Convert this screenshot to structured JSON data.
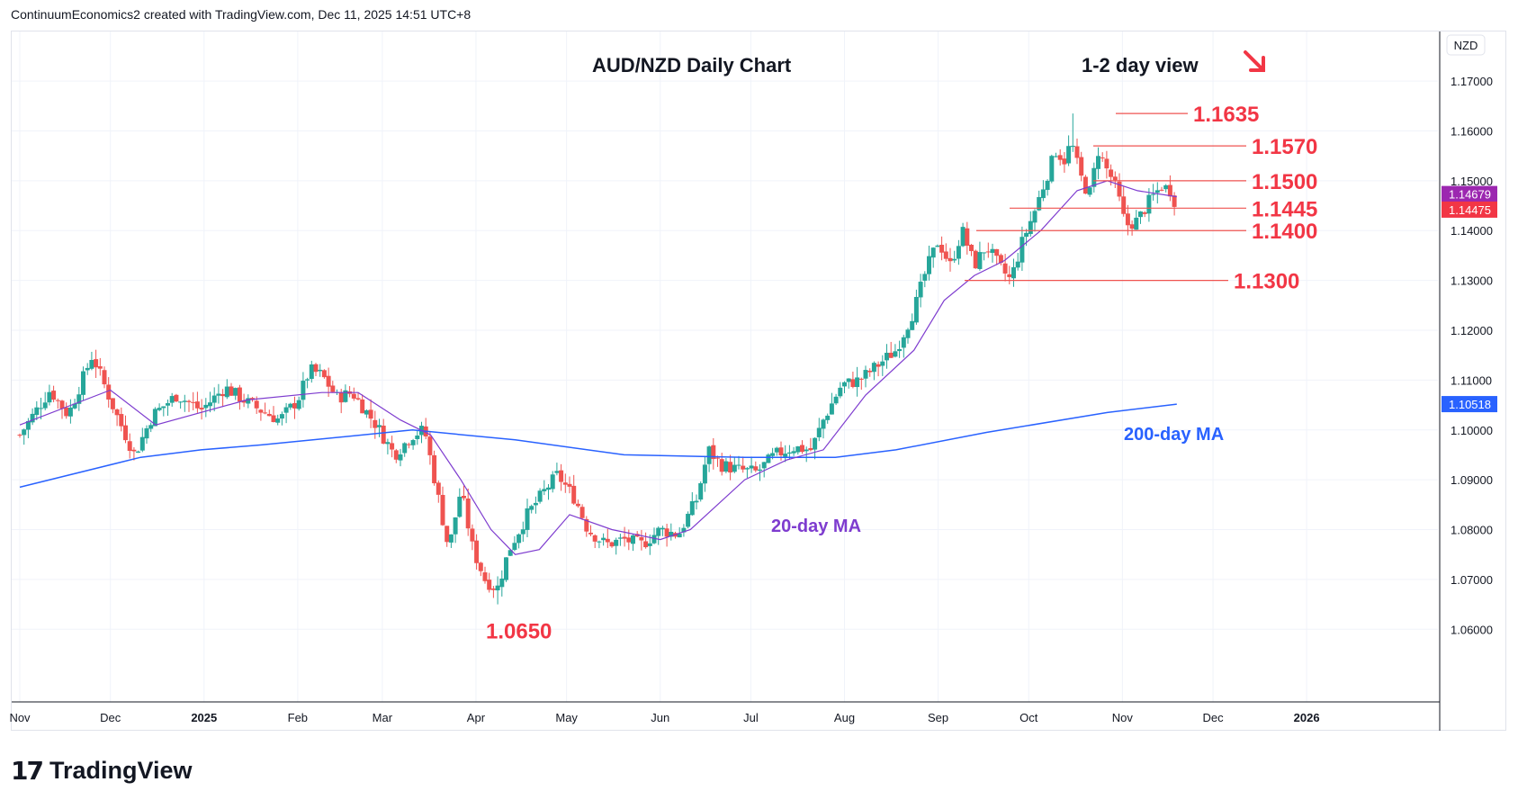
{
  "header": {
    "attribution": "ContinuumEconomics2 created with TradingView.com, Dec 11, 2025 14:51 UTC+8"
  },
  "footer": {
    "brand": "TradingView"
  },
  "colors": {
    "up": "#26a69a",
    "down": "#ef5350",
    "ma20": "#7e3ccf",
    "ma200": "#2962ff",
    "level": "#ef5350",
    "label_red": "#f23645"
  },
  "chart_data": {
    "type": "candlestick",
    "title": "AUD/NZD Daily Chart",
    "subtitle": "1-2 day view",
    "currency_label": "NZD",
    "y_ticks": [
      "1.17000",
      "1.16000",
      "1.15000",
      "1.14000",
      "1.13000",
      "1.12000",
      "1.11000",
      "1.10000",
      "1.09000",
      "1.08000",
      "1.07000",
      "1.06000"
    ],
    "ylim": [
      1.053,
      1.178
    ],
    "x_ticks": [
      "Nov",
      "Dec",
      "2025",
      "Feb",
      "Mar",
      "Apr",
      "May",
      "Jun",
      "Jul",
      "Aug",
      "Sep",
      "Oct",
      "Nov",
      "Dec",
      "2026"
    ],
    "last_price_labels": [
      {
        "value": 1.14679,
        "text": "1.14679",
        "color": "#9c27b0"
      },
      {
        "value": 1.14475,
        "text": "1.14475",
        "color": "#f23645"
      },
      {
        "value": 1.10518,
        "text": "1.10518",
        "color": "#2962ff"
      }
    ],
    "levels": [
      {
        "value": 1.1635,
        "label": "1.1635"
      },
      {
        "value": 1.157,
        "label": "1.1570"
      },
      {
        "value": 1.15,
        "label": "1.1500"
      },
      {
        "value": 1.1445,
        "label": "1.1445"
      },
      {
        "value": 1.14,
        "label": "1.1400"
      },
      {
        "value": 1.13,
        "label": "1.1300"
      }
    ],
    "low_label": {
      "value": 1.065,
      "label": "1.0650"
    },
    "ma_labels": {
      "ma20": "20-day MA",
      "ma200": "200-day MA"
    },
    "anchors": [
      {
        "d": 0,
        "p": 1.099
      },
      {
        "d": 10,
        "p": 1.108
      },
      {
        "d": 16,
        "p": 1.103
      },
      {
        "d": 24,
        "p": 1.115
      },
      {
        "d": 32,
        "p": 1.103
      },
      {
        "d": 38,
        "p": 1.095
      },
      {
        "d": 44,
        "p": 1.103
      },
      {
        "d": 52,
        "p": 1.107
      },
      {
        "d": 60,
        "p": 1.104
      },
      {
        "d": 68,
        "p": 1.1085
      },
      {
        "d": 78,
        "p": 1.1045
      },
      {
        "d": 86,
        "p": 1.102
      },
      {
        "d": 92,
        "p": 1.106
      },
      {
        "d": 96,
        "p": 1.112
      },
      {
        "d": 100,
        "p": 1.111
      },
      {
        "d": 105,
        "p": 1.1065
      },
      {
        "d": 110,
        "p": 1.1075
      },
      {
        "d": 118,
        "p": 1.101
      },
      {
        "d": 124,
        "p": 1.095
      },
      {
        "d": 130,
        "p": 1.099
      },
      {
        "d": 134,
        "p": 1.1
      },
      {
        "d": 138,
        "p": 1.088
      },
      {
        "d": 142,
        "p": 1.076
      },
      {
        "d": 146,
        "p": 1.088
      },
      {
        "d": 150,
        "p": 1.076
      },
      {
        "d": 154,
        "p": 1.07
      },
      {
        "d": 158,
        "p": 1.068
      },
      {
        "d": 162,
        "p": 1.076
      },
      {
        "d": 168,
        "p": 1.083
      },
      {
        "d": 174,
        "p": 1.088
      },
      {
        "d": 178,
        "p": 1.091
      },
      {
        "d": 184,
        "p": 1.086
      },
      {
        "d": 188,
        "p": 1.08
      },
      {
        "d": 194,
        "p": 1.077
      },
      {
        "d": 200,
        "p": 1.078
      },
      {
        "d": 206,
        "p": 1.077
      },
      {
        "d": 212,
        "p": 1.08
      },
      {
        "d": 218,
        "p": 1.079
      },
      {
        "d": 224,
        "p": 1.086
      },
      {
        "d": 228,
        "p": 1.096
      },
      {
        "d": 232,
        "p": 1.093
      },
      {
        "d": 238,
        "p": 1.092
      },
      {
        "d": 244,
        "p": 1.0915
      },
      {
        "d": 250,
        "p": 1.095
      },
      {
        "d": 256,
        "p": 1.0965
      },
      {
        "d": 262,
        "p": 1.096
      },
      {
        "d": 266,
        "p": 1.102
      },
      {
        "d": 272,
        "p": 1.109
      },
      {
        "d": 278,
        "p": 1.11
      },
      {
        "d": 284,
        "p": 1.113
      },
      {
        "d": 290,
        "p": 1.116
      },
      {
        "d": 296,
        "p": 1.124
      },
      {
        "d": 300,
        "p": 1.132
      },
      {
        "d": 304,
        "p": 1.138
      },
      {
        "d": 308,
        "p": 1.133
      },
      {
        "d": 312,
        "p": 1.14
      },
      {
        "d": 316,
        "p": 1.133
      },
      {
        "d": 320,
        "p": 1.137
      },
      {
        "d": 324,
        "p": 1.133
      },
      {
        "d": 328,
        "p": 1.13
      },
      {
        "d": 332,
        "p": 1.138
      },
      {
        "d": 336,
        "p": 1.144
      },
      {
        "d": 340,
        "p": 1.151
      },
      {
        "d": 343,
        "p": 1.156
      },
      {
        "d": 346,
        "p": 1.154
      },
      {
        "d": 348,
        "p": 1.158
      },
      {
        "d": 351,
        "p": 1.151
      },
      {
        "d": 354,
        "p": 1.147
      },
      {
        "d": 357,
        "p": 1.156
      },
      {
        "d": 360,
        "p": 1.152
      },
      {
        "d": 362,
        "p": 1.15
      },
      {
        "d": 364,
        "p": 1.146
      },
      {
        "d": 366,
        "p": 1.141
      },
      {
        "d": 370,
        "p": 1.142
      },
      {
        "d": 374,
        "p": 1.146
      },
      {
        "d": 378,
        "p": 1.149
      },
      {
        "d": 381,
        "p": 1.148
      },
      {
        "d": 383,
        "p": 1.14475
      }
    ],
    "ma20": [
      {
        "d": 0,
        "p": 1.101
      },
      {
        "d": 30,
        "p": 1.108
      },
      {
        "d": 45,
        "p": 1.101
      },
      {
        "d": 75,
        "p": 1.106
      },
      {
        "d": 100,
        "p": 1.1075
      },
      {
        "d": 112,
        "p": 1.1075
      },
      {
        "d": 126,
        "p": 1.102
      },
      {
        "d": 136,
        "p": 1.099
      },
      {
        "d": 146,
        "p": 1.09
      },
      {
        "d": 156,
        "p": 1.08
      },
      {
        "d": 164,
        "p": 1.075
      },
      {
        "d": 172,
        "p": 1.076
      },
      {
        "d": 182,
        "p": 1.083
      },
      {
        "d": 196,
        "p": 1.08
      },
      {
        "d": 212,
        "p": 1.078
      },
      {
        "d": 222,
        "p": 1.08
      },
      {
        "d": 240,
        "p": 1.09
      },
      {
        "d": 254,
        "p": 1.094
      },
      {
        "d": 266,
        "p": 1.096
      },
      {
        "d": 280,
        "p": 1.107
      },
      {
        "d": 296,
        "p": 1.116
      },
      {
        "d": 306,
        "p": 1.126
      },
      {
        "d": 316,
        "p": 1.131
      },
      {
        "d": 326,
        "p": 1.134
      },
      {
        "d": 338,
        "p": 1.14
      },
      {
        "d": 350,
        "p": 1.148
      },
      {
        "d": 360,
        "p": 1.15
      },
      {
        "d": 370,
        "p": 1.148
      },
      {
        "d": 383,
        "p": 1.14679
      }
    ],
    "ma200": [
      {
        "d": 0,
        "p": 1.0885
      },
      {
        "d": 40,
        "p": 1.0945
      },
      {
        "d": 60,
        "p": 1.096
      },
      {
        "d": 80,
        "p": 1.097
      },
      {
        "d": 130,
        "p": 1.1
      },
      {
        "d": 164,
        "p": 1.098
      },
      {
        "d": 200,
        "p": 1.095
      },
      {
        "d": 240,
        "p": 1.0945
      },
      {
        "d": 270,
        "p": 1.0945
      },
      {
        "d": 290,
        "p": 1.096
      },
      {
        "d": 320,
        "p": 1.0995
      },
      {
        "d": 360,
        "p": 1.1035
      },
      {
        "d": 383,
        "p": 1.10518
      }
    ]
  }
}
